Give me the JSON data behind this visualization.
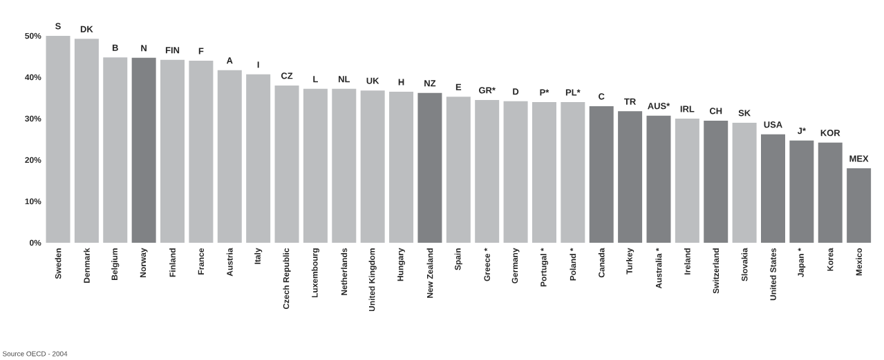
{
  "chart_data": {
    "type": "bar",
    "categories": [
      "Sweden",
      "Denmark",
      "Belgium",
      "Norway",
      "Finland",
      "France",
      "Austria",
      "Italy",
      "Czech Republic",
      "Luxembourg",
      "Netherlands",
      "United Kingdom",
      "Hungary",
      "New Zealand",
      "Spain",
      "Greece *",
      "Germany",
      "Portugal *",
      "Poland *",
      "Canada",
      "Turkey",
      "Australia *",
      "Ireland",
      "Switzerland",
      "Slovakia",
      "United States",
      "Japan *",
      "Korea",
      "Mexico"
    ],
    "values": [
      50.0,
      49.3,
      44.8,
      44.7,
      44.2,
      44.0,
      41.7,
      40.7,
      38.0,
      37.2,
      37.2,
      36.8,
      36.5,
      36.2,
      35.3,
      34.5,
      34.2,
      34.0,
      34.0,
      33.0,
      31.8,
      30.7,
      30.0,
      29.5,
      29.0,
      26.2,
      24.7,
      24.2,
      18.0
    ],
    "value_labels": [
      "S",
      "DK",
      "B",
      "N",
      "FIN",
      "F",
      "A",
      "I",
      "CZ",
      "L",
      "NL",
      "UK",
      "H",
      "NZ",
      "E",
      "GR*",
      "D",
      "P*",
      "PL*",
      "C",
      "TR",
      "AUS*",
      "IRL",
      "CH",
      "SK",
      "USA",
      "J*",
      "KOR",
      "MEX"
    ],
    "colors": [
      "#bcbec0",
      "#bcbec0",
      "#bcbec0",
      "#808285",
      "#bcbec0",
      "#bcbec0",
      "#bcbec0",
      "#bcbec0",
      "#bcbec0",
      "#bcbec0",
      "#bcbec0",
      "#bcbec0",
      "#bcbec0",
      "#808285",
      "#bcbec0",
      "#bcbec0",
      "#bcbec0",
      "#bcbec0",
      "#bcbec0",
      "#808285",
      "#808285",
      "#808285",
      "#bcbec0",
      "#808285",
      "#bcbec0",
      "#808285",
      "#808285",
      "#808285",
      "#808285"
    ],
    "ylim": [
      0,
      50
    ],
    "yticks": [
      {
        "value": 0,
        "label": "0%"
      },
      {
        "value": 10,
        "label": "10%"
      },
      {
        "value": 20,
        "label": "20%"
      },
      {
        "value": 30,
        "label": "30%"
      },
      {
        "value": 40,
        "label": "40%"
      },
      {
        "value": 50,
        "label": "50%"
      }
    ],
    "annotations": [
      "Source OECD - 2004"
    ]
  }
}
